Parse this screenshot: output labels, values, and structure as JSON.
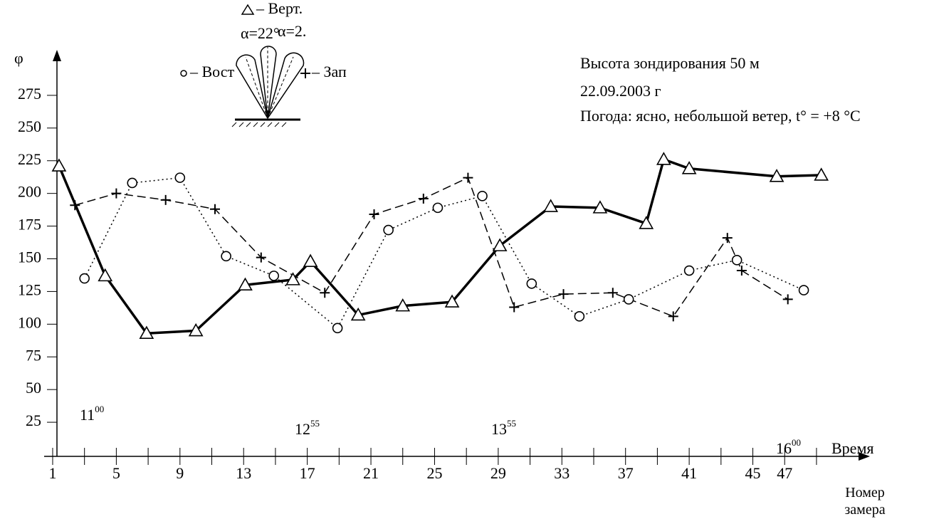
{
  "chart_data": {
    "type": "line",
    "y_label": "φ",
    "x_label": "Номер замера",
    "time_label": "Время",
    "info": [
      "Высота зондирования 50 м",
      "22.09.2003 г",
      "Погода: ясно, небольшой ветер, t° = +8 °C"
    ],
    "inset_angles": [
      "α=22°",
      "α=2."
    ],
    "times": [
      {
        "hour": "11",
        "minute": "00"
      },
      {
        "hour": "12",
        "minute": "55"
      },
      {
        "hour": "13",
        "minute": "55"
      },
      {
        "hour": "16",
        "minute": "00"
      }
    ],
    "xlim": [
      0.5,
      52
    ],
    "xticks": [
      1,
      5,
      9,
      13,
      17,
      21,
      25,
      29,
      33,
      37,
      41,
      45,
      47
    ],
    "xminor_ticks": [
      1,
      3,
      5,
      7,
      9,
      11,
      13,
      15,
      17,
      19,
      21,
      23,
      25,
      27,
      29,
      31,
      33,
      35,
      37,
      39,
      41,
      43,
      45,
      47,
      49
    ],
    "ylim": [
      0,
      300
    ],
    "yticks": [
      25,
      50,
      75,
      100,
      125,
      150,
      175,
      200,
      225,
      250,
      275
    ],
    "series": [
      {
        "name": "– Верт.",
        "marker": "triangle",
        "dash": "solid",
        "color": "#000000",
        "x": [
          1.4,
          4.3,
          6.9,
          10.0,
          13.1,
          16.1,
          17.2,
          20.2,
          23.0,
          26.1,
          29.1,
          32.3,
          35.4,
          38.3,
          39.4,
          41.0,
          46.5,
          49.3
        ],
        "values": [
          221,
          137,
          93,
          95,
          130,
          134,
          148,
          107,
          114,
          117,
          160,
          190,
          189,
          177,
          226,
          219,
          213,
          214
        ]
      },
      {
        "name": "– Вост",
        "marker": "circle",
        "dash": "dotted",
        "color": "#000000",
        "x": [
          3.0,
          6.0,
          9.0,
          11.9,
          14.9,
          18.9,
          22.1,
          25.2,
          28.0,
          31.1,
          34.1,
          37.2,
          41.0,
          44.0,
          48.2
        ],
        "values": [
          135,
          208,
          212,
          152,
          137,
          97,
          172,
          189,
          198,
          131,
          106,
          119,
          141,
          149,
          126
        ]
      },
      {
        "name": "– Зап",
        "marker": "plus",
        "dash": "dashed",
        "color": "#000000",
        "x": [
          2.4,
          5.0,
          8.1,
          11.2,
          14.1,
          18.1,
          21.2,
          24.3,
          27.1,
          30.0,
          33.1,
          36.2,
          40.0,
          43.4,
          44.3,
          47.2
        ],
        "values": [
          191,
          200,
          195,
          188,
          151,
          124,
          184,
          196,
          212,
          113,
          123,
          124,
          106,
          166,
          141,
          119
        ]
      }
    ]
  }
}
